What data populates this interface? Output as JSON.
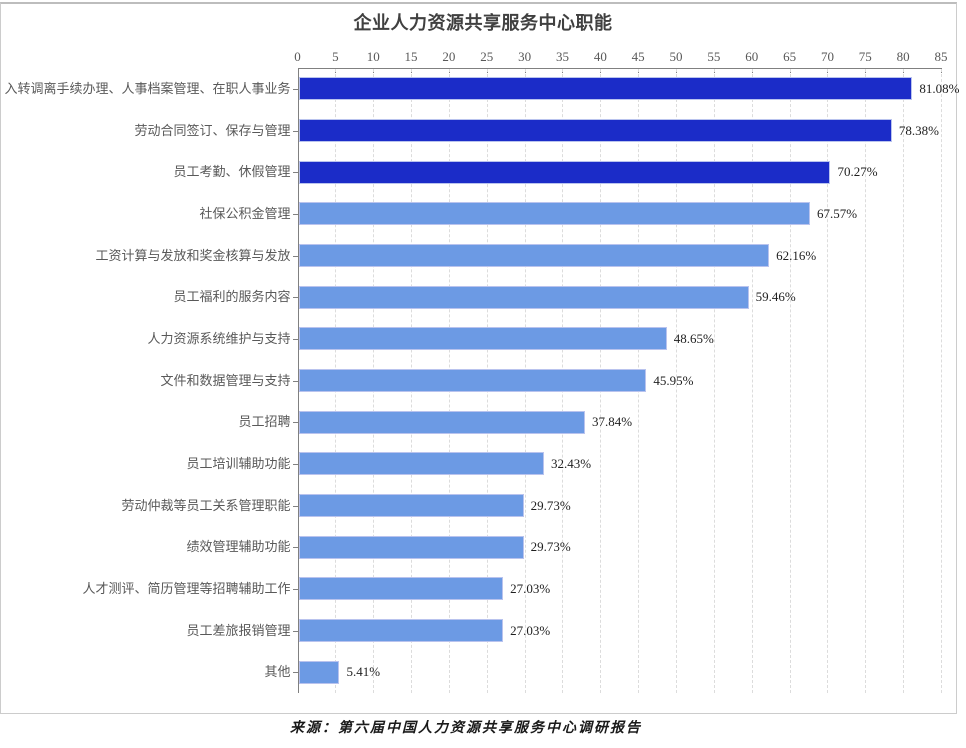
{
  "title": "企业人力资源共享服务中心职能",
  "source": "来源：第六届中国人力资源共享服务中心调研报告",
  "chart_data": {
    "type": "bar",
    "orientation": "horizontal",
    "title": "企业人力资源共享服务中心职能",
    "categories": [
      "入转调离手续办理、人事档案管理、在职人事业务",
      "劳动合同签订、保存与管理",
      "员工考勤、休假管理",
      "社保公积金管理",
      "工资计算与发放和奖金核算与发放",
      "员工福利的服务内容",
      "人力资源系统维护与支持",
      "文件和数据管理与支持",
      "员工招聘",
      "员工培训辅助功能",
      "劳动仲裁等员工关系管理职能",
      "绩效管理辅助功能",
      "人才测评、简历管理等招聘辅助工作",
      "员工差旅报销管理",
      "其他"
    ],
    "values": [
      81.08,
      78.38,
      70.27,
      67.57,
      62.16,
      59.46,
      48.65,
      45.95,
      37.84,
      32.43,
      29.73,
      29.73,
      27.03,
      27.03,
      5.41
    ],
    "data_labels": [
      "81.08%",
      "78.38%",
      "70.27%",
      "67.57%",
      "62.16%",
      "59.46%",
      "48.65%",
      "45.95%",
      "37.84%",
      "32.43%",
      "29.73%",
      "29.73%",
      "27.03%",
      "27.03%",
      "5.41%"
    ],
    "xlim": [
      0,
      85
    ],
    "xticks": [
      0,
      5,
      10,
      15,
      20,
      25,
      30,
      35,
      40,
      45,
      50,
      55,
      60,
      65,
      70,
      75,
      80,
      85
    ],
    "xaxis_position": "top",
    "grid": "vertical-dashed",
    "legend": "none",
    "highlight_top_n": 3,
    "colors": {
      "bar_highlight": "#1b2cc8",
      "bar_normal": "#6c9ae4",
      "bar_border": "#b9c3ee",
      "axis": "#808080",
      "grid": "#dcdcdc",
      "tick_label": "#595959",
      "category_label": "#595959",
      "value_label": "#1f1f1f",
      "title": "#404040"
    }
  }
}
